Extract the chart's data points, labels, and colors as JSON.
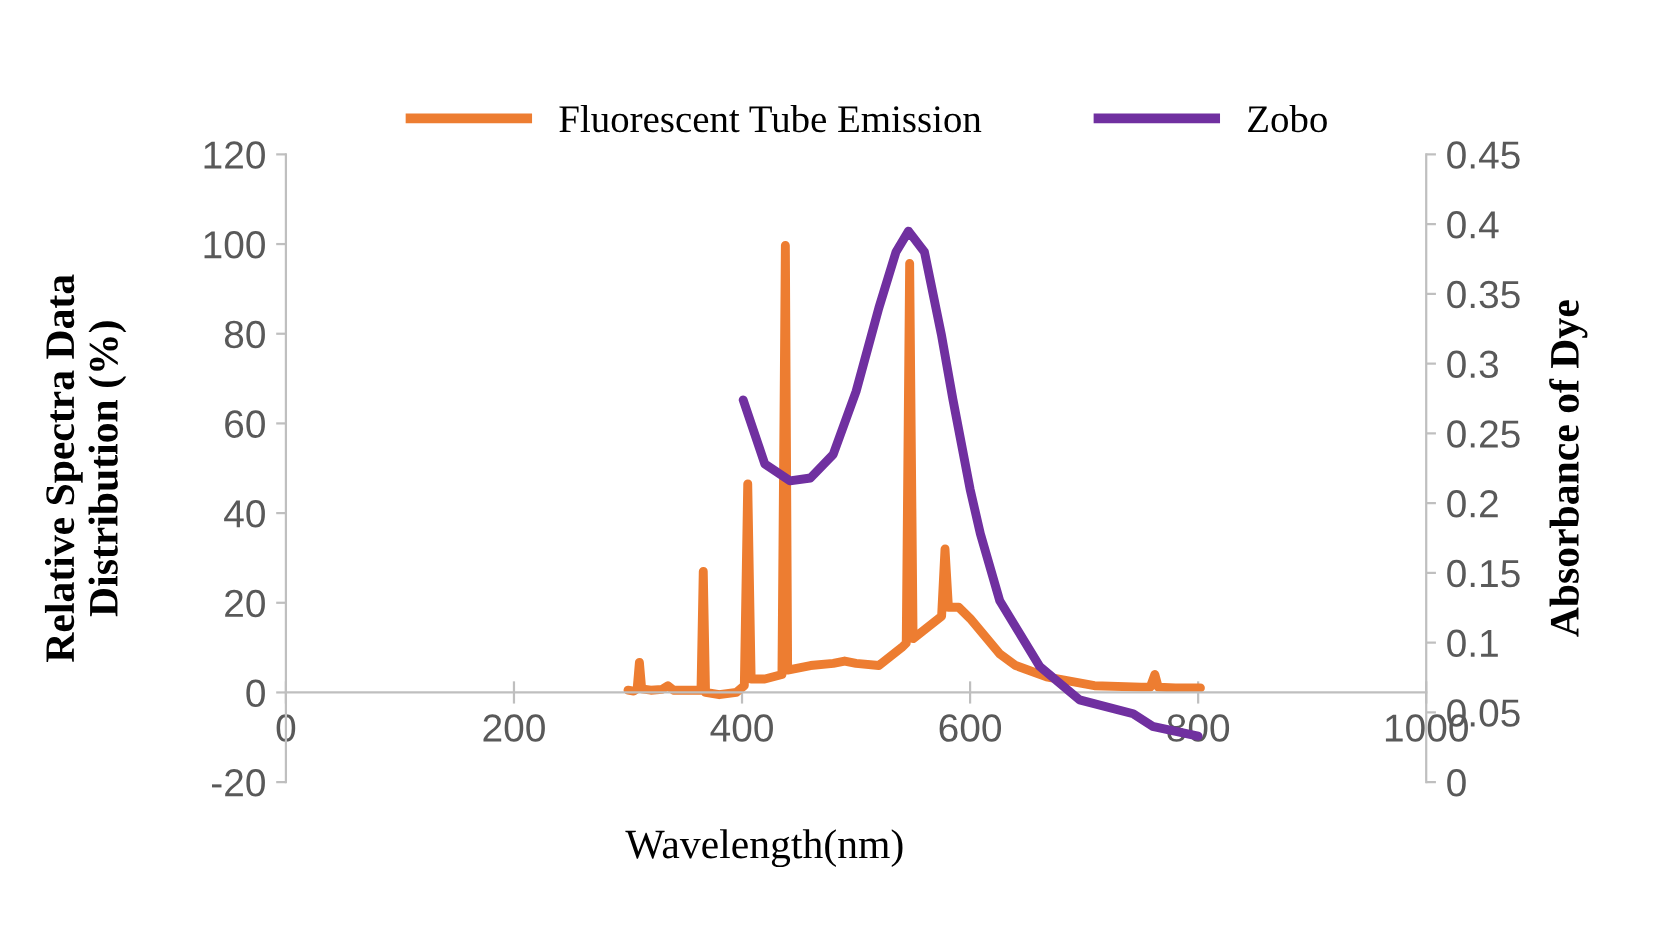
{
  "chart_data": {
    "type": "line",
    "xlabel": "Wavelength(nm)",
    "ylabel": "Relative Spectra Data\nDistribution (%)",
    "y2label": "Absorbance of Dye",
    "xlim": [
      0,
      1000
    ],
    "xticks": [
      0,
      200,
      400,
      600,
      800,
      1000
    ],
    "ylim": [
      -20,
      120
    ],
    "yticks": [
      -20,
      0,
      20,
      40,
      60,
      80,
      100,
      120
    ],
    "y2lim": [
      0,
      0.45
    ],
    "y2ticks": [
      0,
      0.05,
      0.1,
      0.15,
      0.2,
      0.25,
      0.3,
      0.35,
      0.4,
      0.45
    ],
    "grid": false,
    "legend": "top",
    "marker": "none",
    "line_style": "solid",
    "series": [
      {
        "name": "Fluorescent Tube Emission",
        "color": "#ed7d31",
        "axis": "y",
        "x": [
          300,
          305,
          308,
          310,
          312,
          320,
          330,
          335,
          340,
          360,
          364,
          366,
          368,
          380,
          395,
          402,
          405,
          408,
          420,
          435,
          438,
          440,
          460,
          480,
          490,
          500,
          520,
          530,
          540,
          544,
          547,
          550,
          560,
          570,
          575,
          578,
          581,
          590,
          600,
          626,
          640,
          667,
          709,
          750,
          758,
          762,
          765,
          780,
          802
        ],
        "values": [
          0.5,
          0.3,
          0.8,
          6.7,
          0.8,
          0.5,
          0.7,
          1.5,
          0.5,
          0.5,
          0.5,
          27,
          0,
          -0.5,
          0,
          1.5,
          46.5,
          3,
          3,
          4,
          99.7,
          5,
          6,
          6.5,
          7,
          6.5,
          6,
          8,
          10,
          11,
          95.7,
          12,
          14,
          16,
          17,
          32,
          19,
          19,
          16.5,
          8.6,
          6,
          3.5,
          1.5,
          1.2,
          1.2,
          4,
          1.2,
          1,
          1
        ]
      },
      {
        "name": "Zobo",
        "color": "#7030a0",
        "axis": "y2",
        "x": [
          401,
          420,
          442,
          460,
          480,
          500,
          520,
          535,
          546,
          560,
          575,
          585,
          600,
          609,
          626,
          661,
          696,
          743,
          760,
          800
        ],
        "values": [
          0.274,
          0.228,
          0.216,
          0.218,
          0.235,
          0.28,
          0.34,
          0.38,
          0.395,
          0.38,
          0.32,
          0.274,
          0.21,
          0.178,
          0.13,
          0.083,
          0.059,
          0.049,
          0.04,
          0.033
        ]
      }
    ]
  }
}
